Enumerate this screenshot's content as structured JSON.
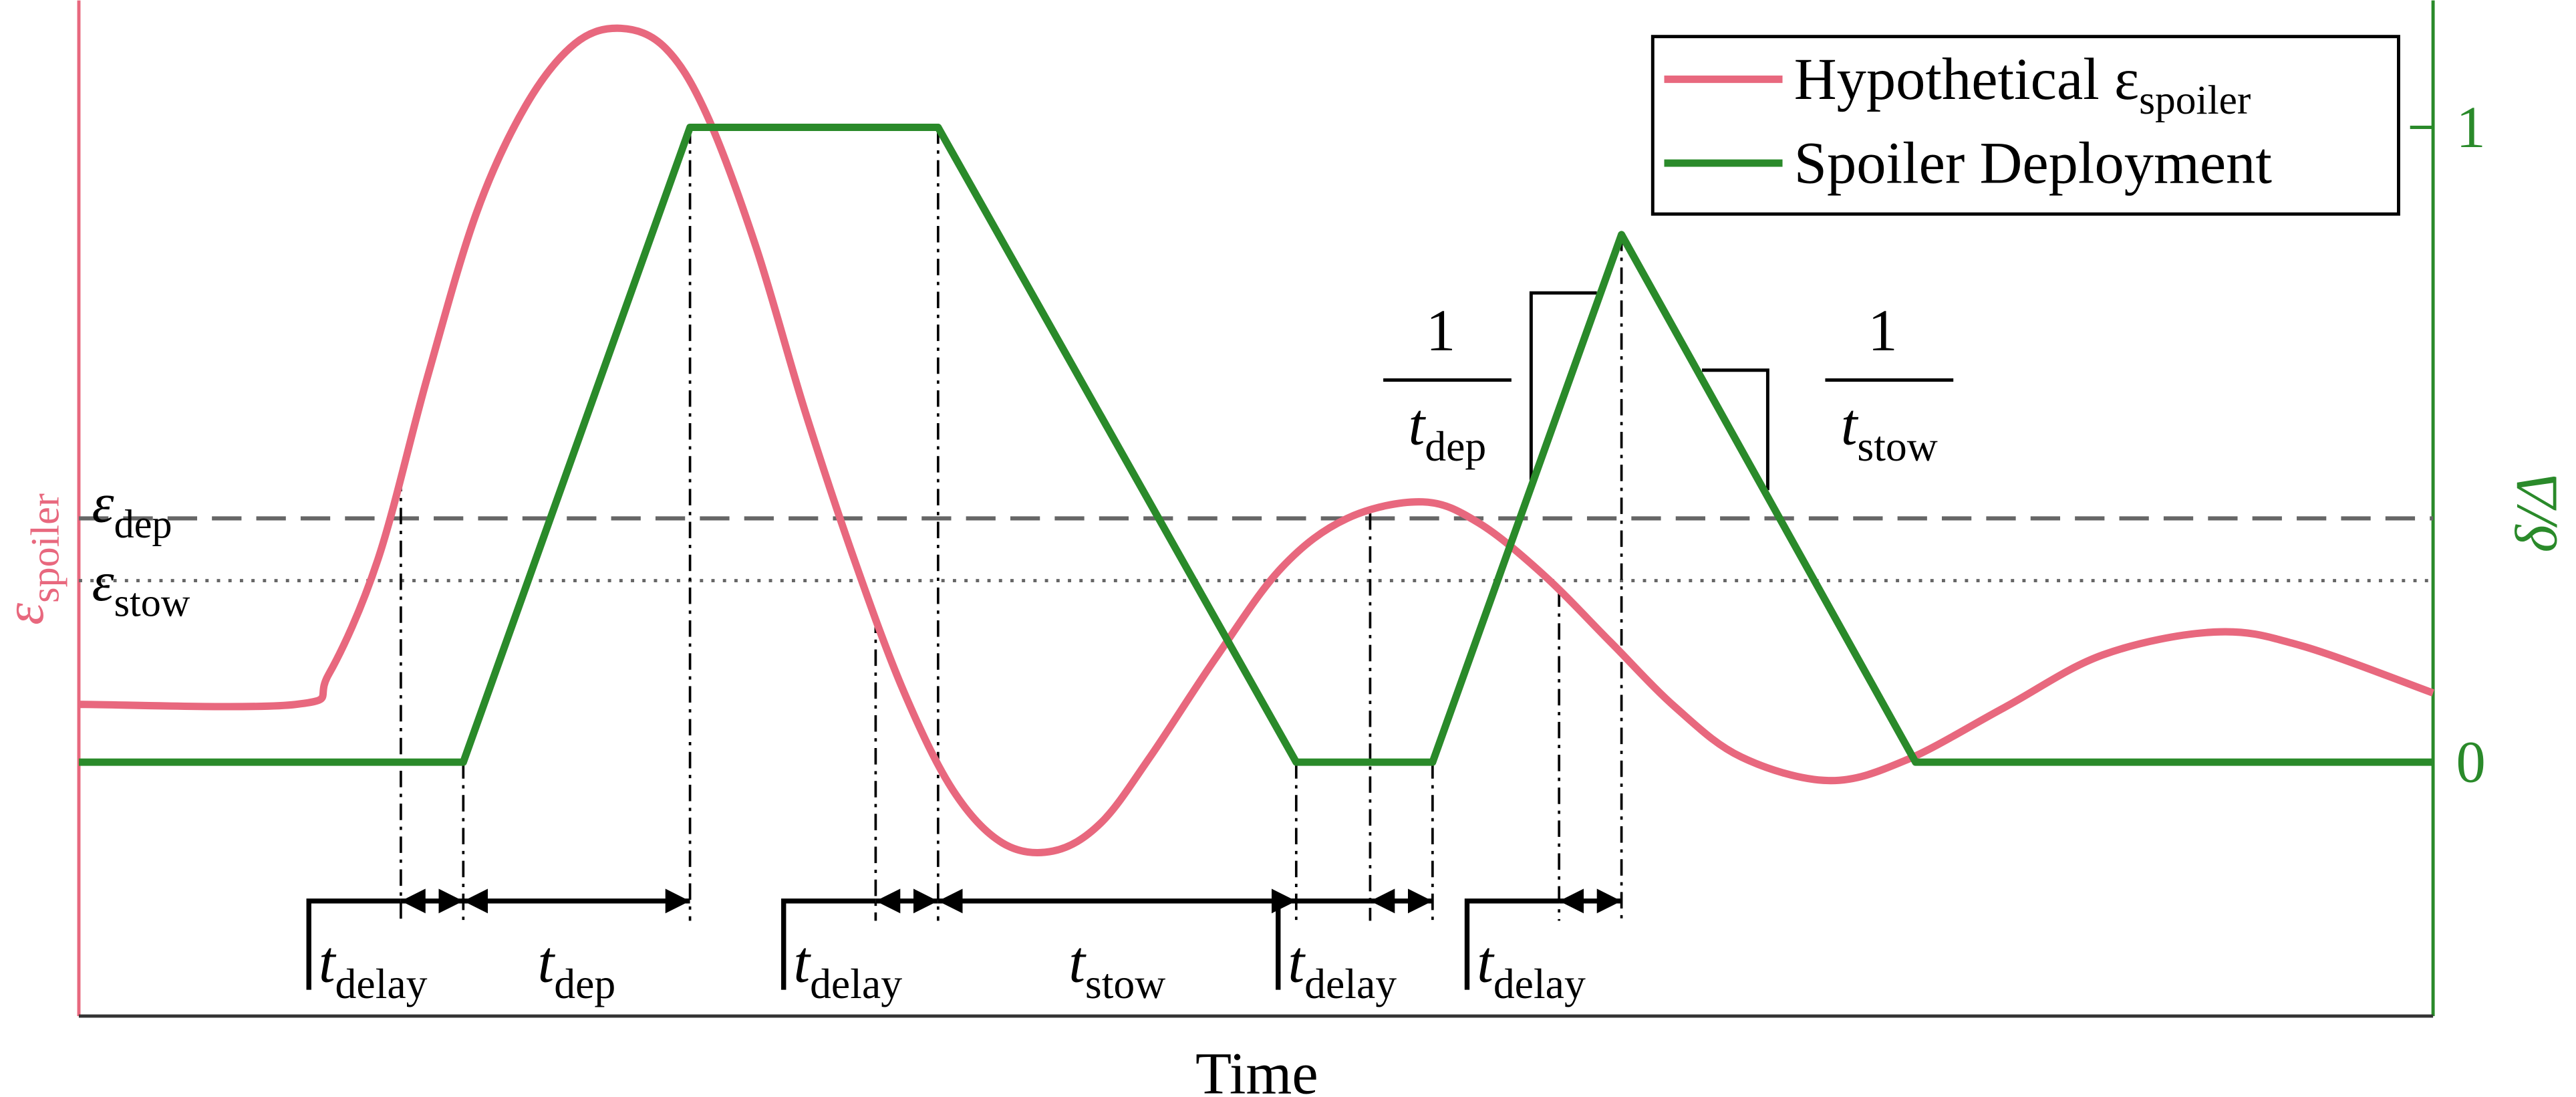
{
  "chart_data": {
    "type": "line",
    "xlabel": "Time",
    "ylabel": {
      "symbol": "ε",
      "subscript": "spoiler"
    },
    "y2label": "δ/Δ",
    "xlim": [
      0,
      1433
    ],
    "ylim": [
      -0.4,
      1.2
    ],
    "y2lim": [
      -0.4,
      1.2
    ],
    "y2ticks": [
      0,
      1
    ],
    "legend": "upper right",
    "series": [
      {
        "name": "Hypothetical ε",
        "name_subscript": "spoiler",
        "color": "#e8687e",
        "x": [
          0,
          132,
          152,
          182,
          212,
          242,
          272,
          302,
          330,
          357,
          382,
          412,
          442,
          472,
          502,
          532,
          562,
          593,
          622,
          652,
          692,
          732,
          772,
          818,
          852,
          892,
          932,
          972,
          1012,
          1065,
          1112,
          1172,
          1232,
          1300,
          1352,
          1433
        ],
        "values": [
          0.091,
          0.091,
          0.138,
          0.319,
          0.605,
          0.865,
          1.034,
          1.132,
          1.156,
          1.125,
          1.021,
          0.813,
          0.553,
          0.319,
          0.112,
          -0.044,
          -0.127,
          -0.14,
          -0.096,
          0.008,
          0.164,
          0.306,
          0.384,
          0.41,
          0.377,
          0.294,
          0.19,
          0.086,
          0.008,
          -0.029,
          0.003,
          0.086,
          0.169,
          0.205,
          0.184,
          0.109
        ]
      },
      {
        "name": "Spoiler Deployment",
        "color": "#2a8a2a",
        "axis": "y2",
        "x": [
          0,
          234,
          372,
          523,
          741,
          824,
          939,
          1118,
          1433
        ],
        "values": [
          0,
          0,
          1,
          1,
          0,
          0,
          0.831,
          0,
          0
        ]
      }
    ],
    "thresholds": [
      {
        "symbol": "ε",
        "subscript": "dep",
        "value": 0.384,
        "style": "dashed"
      },
      {
        "symbol": "ε",
        "subscript": "stow",
        "value": 0.286,
        "style": "dotted"
      }
    ],
    "intervals": [
      {
        "symbol": "t",
        "subscript": "delay",
        "start": 196,
        "end": 234
      },
      {
        "symbol": "t",
        "subscript": "dep",
        "start": 234,
        "end": 372
      },
      {
        "symbol": "t",
        "subscript": "delay",
        "start": 485,
        "end": 523
      },
      {
        "symbol": "t",
        "subscript": "stow",
        "start": 523,
        "end": 741
      },
      {
        "symbol": "t",
        "subscript": "delay",
        "start": 786,
        "end": 824
      },
      {
        "symbol": "t",
        "subscript": "delay",
        "start": 901,
        "end": 939
      }
    ],
    "slopes": [
      {
        "numerator": "1",
        "symbol": "t",
        "subscript": "dep"
      },
      {
        "numerator": "1",
        "symbol": "t",
        "subscript": "stow"
      }
    ]
  }
}
